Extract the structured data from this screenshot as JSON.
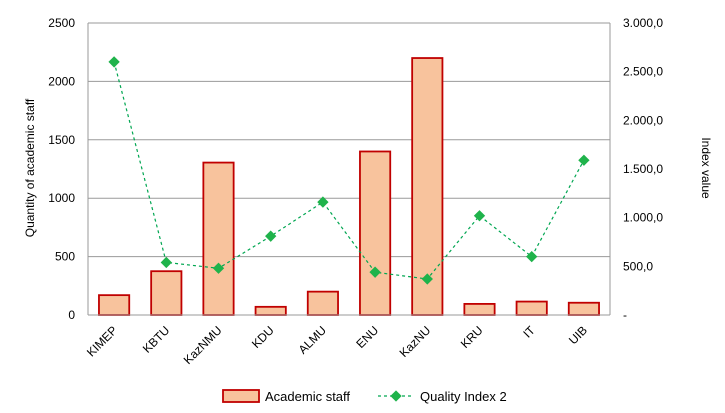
{
  "chart_data": {
    "type": "bar",
    "categories": [
      "KIMEP",
      "KBTU",
      "KazNMU",
      "KDU",
      "ALMU",
      "ENU",
      "KazNU",
      "KRU",
      "IT",
      "UIB"
    ],
    "series": [
      {
        "name": "Academic staff",
        "type": "bar",
        "axis": "left",
        "values": [
          170,
          375,
          1305,
          70,
          200,
          1400,
          2200,
          95,
          115,
          105
        ]
      },
      {
        "name": "Quality Index 2",
        "type": "line",
        "axis": "right",
        "style": "dashed",
        "marker": "diamond",
        "values": [
          2600,
          540,
          480,
          810,
          1160,
          440,
          370,
          1020,
          600,
          1590
        ]
      }
    ],
    "ylabel": "Quantity of academic staff",
    "y2label": "Index value",
    "ylim": [
      0,
      2500
    ],
    "y2lim": [
      0,
      3000
    ],
    "yticks": [
      0,
      500,
      1000,
      1500,
      2000,
      2500
    ],
    "y2ticks": [
      0,
      500,
      1000,
      1500,
      2000,
      2500,
      3000
    ],
    "y2tick_labels": [
      "-",
      "500,0",
      "1.000,0",
      "1.500,0",
      "2.000,0",
      "2.500,0",
      "3.000,0"
    ],
    "grid": true,
    "legend_position": "bottom",
    "colors": {
      "bar_fill": "#F8C39D",
      "bar_edge": "#C00000",
      "line": "#00A651",
      "marker": "#1FB34B",
      "grid": "#9a9a9a"
    }
  }
}
